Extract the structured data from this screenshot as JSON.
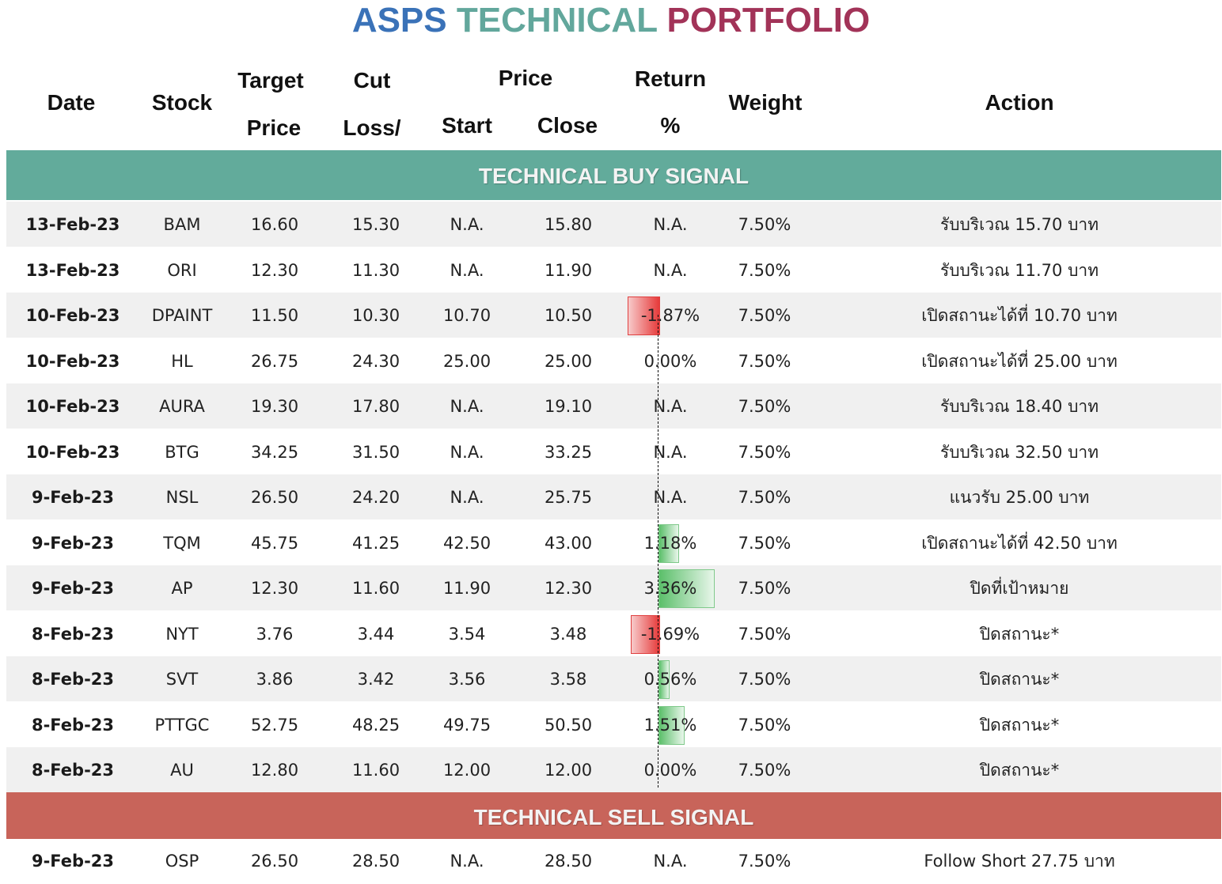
{
  "title": {
    "w1": "ASPS",
    "w2": "TECHNICAL",
    "w3": "PORTFOLIO"
  },
  "colors": {
    "buy_band": "#62ab9b",
    "sell_band": "#c8645a",
    "neg_bar": "#e63a3a",
    "pos_bar": "#5bbf6a"
  },
  "headers": {
    "date": "Date",
    "stock": "Stock",
    "target_1": "Target",
    "target_2": "Price",
    "cut_1": "Cut",
    "cut_2": "Loss/",
    "price": "Price",
    "start": "Start",
    "close": "Close",
    "return_1": "Return",
    "return_2": "%",
    "weight": "Weight",
    "action": "Action"
  },
  "buy_signal_label": "TECHNICAL BUY SIGNAL",
  "sell_signal_label": "TECHNICAL SELL SIGNAL",
  "buy_rows": [
    {
      "date": "13-Feb-23",
      "stock": "BAM",
      "target": "16.60",
      "cut": "15.30",
      "start": "N.A.",
      "close": "15.80",
      "ret": "N.A.",
      "weight": "7.50%",
      "action": "รับบริเวณ 15.70 บาท"
    },
    {
      "date": "13-Feb-23",
      "stock": "ORI",
      "target": "12.30",
      "cut": "11.30",
      "start": "N.A.",
      "close": "11.90",
      "ret": "N.A.",
      "weight": "7.50%",
      "action": "รับบริเวณ 11.70 บาท"
    },
    {
      "date": "10-Feb-23",
      "stock": "DPAINT",
      "target": "11.50",
      "cut": "10.30",
      "start": "10.70",
      "close": "10.50",
      "ret": "-1.87%",
      "weight": "7.50%",
      "action": "เปิดสถานะได้ที่ 10.70 บาท"
    },
    {
      "date": "10-Feb-23",
      "stock": "HL",
      "target": "26.75",
      "cut": "24.30",
      "start": "25.00",
      "close": "25.00",
      "ret": "0.00%",
      "weight": "7.50%",
      "action": "เปิดสถานะได้ที่ 25.00 บาท"
    },
    {
      "date": "10-Feb-23",
      "stock": "AURA",
      "target": "19.30",
      "cut": "17.80",
      "start": "N.A.",
      "close": "19.10",
      "ret": "N.A.",
      "weight": "7.50%",
      "action": "รับบริเวณ 18.40 บาท"
    },
    {
      "date": "10-Feb-23",
      "stock": "BTG",
      "target": "34.25",
      "cut": "31.50",
      "start": "N.A.",
      "close": "33.25",
      "ret": "N.A.",
      "weight": "7.50%",
      "action": "รับบริเวณ 32.50 บาท"
    },
    {
      "date": "9-Feb-23",
      "stock": "NSL",
      "target": "26.50",
      "cut": "24.20",
      "start": "N.A.",
      "close": "25.75",
      "ret": "N.A.",
      "weight": "7.50%",
      "action": "แนวรับ 25.00 บาท"
    },
    {
      "date": "9-Feb-23",
      "stock": "TQM",
      "target": "45.75",
      "cut": "41.25",
      "start": "42.50",
      "close": "43.00",
      "ret": "1.18%",
      "weight": "7.50%",
      "action": "เปิดสถานะได้ที่ 42.50 บาท"
    },
    {
      "date": "9-Feb-23",
      "stock": "AP",
      "target": "12.30",
      "cut": "11.60",
      "start": "11.90",
      "close": "12.30",
      "ret": "3.36%",
      "weight": "7.50%",
      "action": "ปิดที่เป้าหมาย"
    },
    {
      "date": "8-Feb-23",
      "stock": "NYT",
      "target": "3.76",
      "cut": "3.44",
      "start": "3.54",
      "close": "3.48",
      "ret": "-1.69%",
      "weight": "7.50%",
      "action": "ปิดสถานะ*"
    },
    {
      "date": "8-Feb-23",
      "stock": "SVT",
      "target": "3.86",
      "cut": "3.42",
      "start": "3.56",
      "close": "3.58",
      "ret": "0.56%",
      "weight": "7.50%",
      "action": "ปิดสถานะ*"
    },
    {
      "date": "8-Feb-23",
      "stock": "PTTGC",
      "target": "52.75",
      "cut": "48.25",
      "start": "49.75",
      "close": "50.50",
      "ret": "1.51%",
      "weight": "7.50%",
      "action": "ปิดสถานะ*"
    },
    {
      "date": "8-Feb-23",
      "stock": "AU",
      "target": "12.80",
      "cut": "11.60",
      "start": "12.00",
      "close": "12.00",
      "ret": "0.00%",
      "weight": "7.50%",
      "action": "ปิดสถานะ*"
    }
  ],
  "sell_rows": [
    {
      "date": "9-Feb-23",
      "stock": "OSP",
      "target": "26.50",
      "cut": "28.50",
      "start": "N.A.",
      "close": "28.50",
      "ret": "N.A.",
      "weight": "7.50%",
      "action": "Follow Short 27.75 บาท"
    }
  ]
}
